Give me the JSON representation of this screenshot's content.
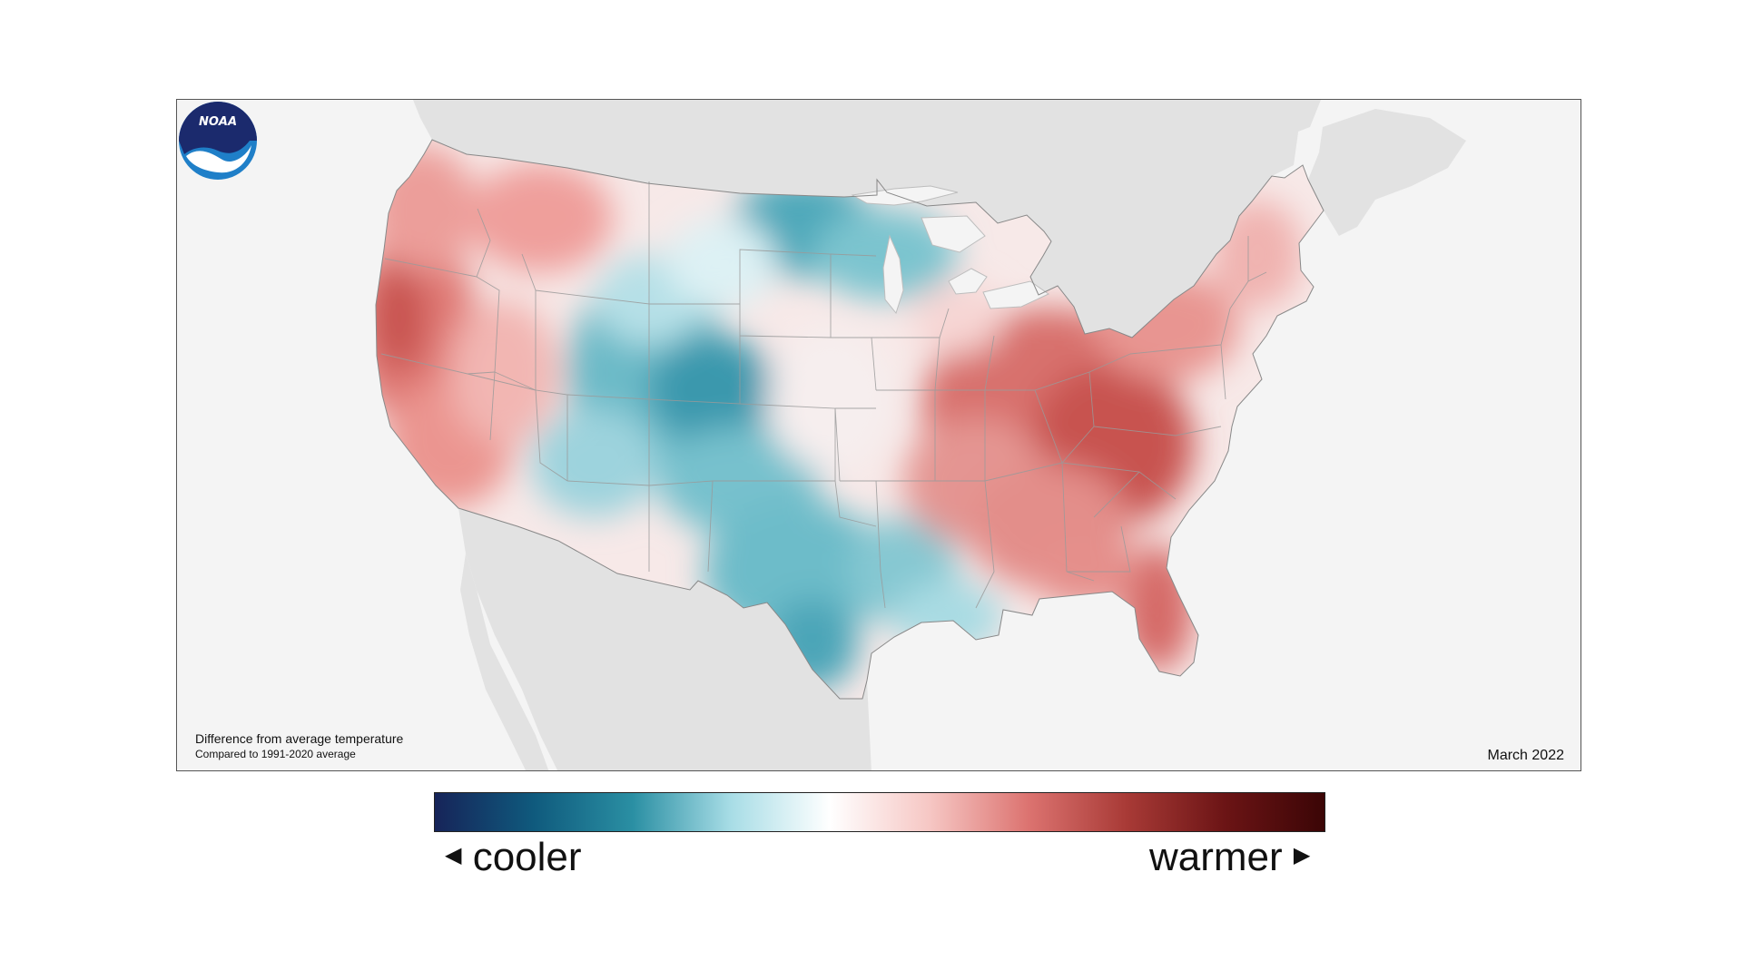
{
  "map": {
    "title": "Difference from average temperature",
    "subtitle": "Compared to 1991-2020 average",
    "date": "March 2022",
    "logo_text": "NOAA"
  },
  "legend": {
    "cooler_label": "cooler",
    "warmer_label": "warmer",
    "cooler_arrow_icon": "triangle-left",
    "warmer_arrow_icon": "triangle-right",
    "colors": [
      "#162459",
      "#0f5a7d",
      "#2a8fa3",
      "#a8dde6",
      "#ffffff",
      "#f6c7c4",
      "#dc7370",
      "#a83a36",
      "#6b1415",
      "#3b0506"
    ]
  },
  "colors": {
    "warm_anomaly": "#e07874",
    "cool_anomaly": "#3a9fb2",
    "land_outside": "#e2e2e2",
    "water": "#f4f4f4",
    "logo_blue": "#1f7fc8",
    "logo_navy": "#1b2a6d"
  }
}
